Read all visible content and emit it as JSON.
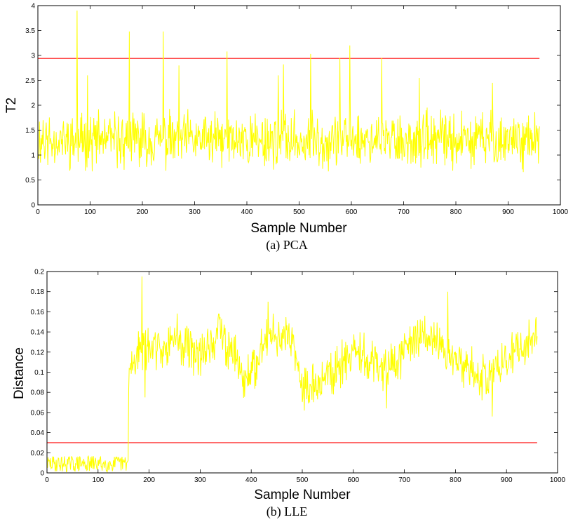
{
  "chart_data": [
    {
      "type": "line",
      "caption": "(a) PCA",
      "title": "",
      "xlabel": "Sample Number",
      "ylabel": "T2",
      "xlim": [
        0,
        1000
      ],
      "ylim": [
        0,
        4
      ],
      "xticks": [
        0,
        100,
        200,
        300,
        400,
        500,
        600,
        700,
        800,
        900,
        1000
      ],
      "yticks": [
        0,
        0.5,
        1,
        1.5,
        2,
        2.5,
        3,
        3.5,
        4
      ],
      "grid": false,
      "series": [
        {
          "color": "#ffff00",
          "x_range": [
            1,
            960
          ],
          "n_points": 960,
          "level": 1.3,
          "noise_amplitude": 0.55,
          "seed": 11,
          "spikes": [
            {
              "x": 75,
              "y": 3.9
            },
            {
              "x": 175,
              "y": 3.48
            },
            {
              "x": 240,
              "y": 3.48
            },
            {
              "x": 362,
              "y": 3.08
            },
            {
              "x": 470,
              "y": 2.82
            },
            {
              "x": 522,
              "y": 3.03
            },
            {
              "x": 578,
              "y": 2.95
            },
            {
              "x": 597,
              "y": 3.2
            },
            {
              "x": 658,
              "y": 2.95
            },
            {
              "x": 10,
              "y": 1.7
            },
            {
              "x": 95,
              "y": 2.6
            },
            {
              "x": 270,
              "y": 2.8
            },
            {
              "x": 460,
              "y": 2.6
            },
            {
              "x": 730,
              "y": 2.55
            },
            {
              "x": 870,
              "y": 2.45
            }
          ]
        }
      ],
      "threshold": {
        "y": 2.94,
        "x_range": [
          0,
          960
        ],
        "color": "#ff3333"
      }
    },
    {
      "type": "line",
      "caption": "(b) LLE",
      "title": "",
      "xlabel": "Sample Number",
      "ylabel": "Distance",
      "xlim": [
        0,
        1000
      ],
      "ylim": [
        0,
        0.2
      ],
      "xticks": [
        0,
        100,
        200,
        300,
        400,
        500,
        600,
        700,
        800,
        900,
        1000
      ],
      "yticks": [
        0,
        0.02,
        0.04,
        0.06,
        0.08,
        0.1,
        0.12,
        0.14,
        0.16,
        0.18,
        0.2
      ],
      "grid": false,
      "series": [
        {
          "color": "#ffff00",
          "x_range": [
            1,
            960
          ],
          "n_points": 960,
          "change_at": 160,
          "pre_level": 0.009,
          "pre_noise": 0.008,
          "post_anchors": [
            [
              160,
              0.095
            ],
            [
              180,
              0.125
            ],
            [
              200,
              0.12
            ],
            [
              250,
              0.135
            ],
            [
              300,
              0.115
            ],
            [
              340,
              0.14
            ],
            [
              390,
              0.095
            ],
            [
              440,
              0.14
            ],
            [
              480,
              0.13
            ],
            [
              500,
              0.085
            ],
            [
              540,
              0.09
            ],
            [
              600,
              0.125
            ],
            [
              660,
              0.1
            ],
            [
              720,
              0.13
            ],
            [
              760,
              0.135
            ],
            [
              800,
              0.11
            ],
            [
              850,
              0.095
            ],
            [
              900,
              0.11
            ],
            [
              960,
              0.14
            ]
          ],
          "post_noise": 0.018,
          "seed": 29,
          "spikes": [
            {
              "x": 186,
              "y": 0.195
            },
            {
              "x": 192,
              "y": 0.075
            },
            {
              "x": 785,
              "y": 0.18
            },
            {
              "x": 872,
              "y": 0.056
            },
            {
              "x": 433,
              "y": 0.17
            },
            {
              "x": 665,
              "y": 0.064
            }
          ]
        }
      ],
      "threshold": {
        "y": 0.03,
        "x_range": [
          0,
          960
        ],
        "color": "#ff3333"
      }
    }
  ]
}
